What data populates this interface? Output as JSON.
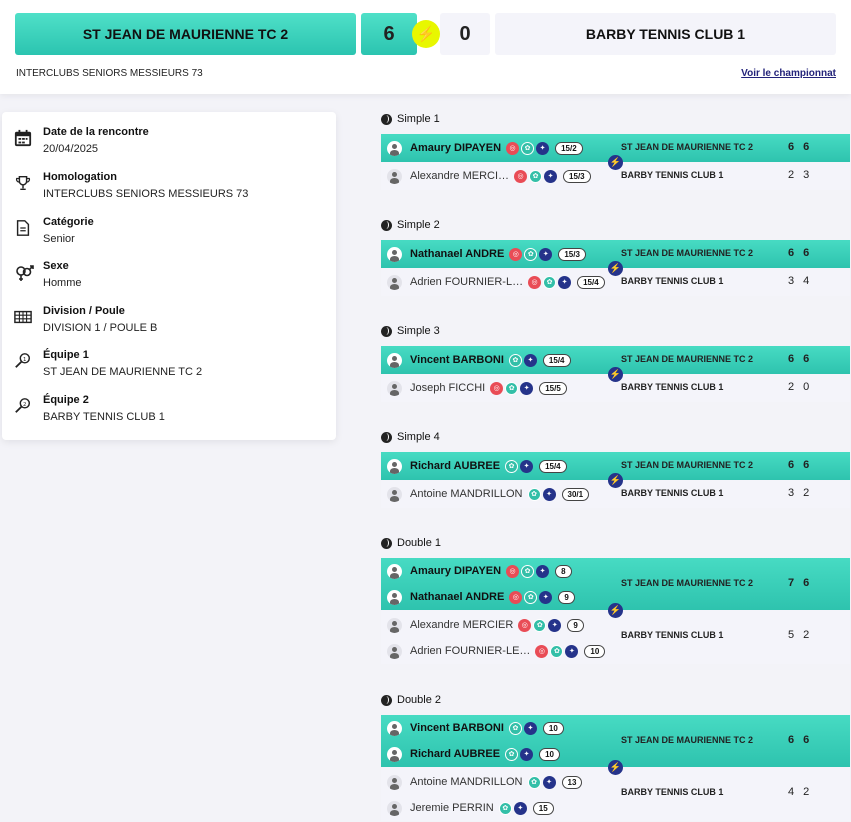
{
  "header": {
    "team1": "ST JEAN DE MAURIENNE TC 2",
    "score1": "6",
    "score2": "0",
    "team2": "BARBY TENNIS CLUB 1",
    "competition": "INTERCLUBS SENIORS MESSIEURS 73",
    "championship_link": "Voir le championnat"
  },
  "info": [
    {
      "label": "Date de la rencontre",
      "value": "20/04/2025",
      "icon": "calendar-icon"
    },
    {
      "label": "Homologation",
      "value": "INTERCLUBS SENIORS MESSIEURS 73",
      "icon": "trophy-icon"
    },
    {
      "label": "Catégorie",
      "value": "Senior",
      "icon": "document-icon"
    },
    {
      "label": "Sexe",
      "value": "Homme",
      "icon": "gender-icon"
    },
    {
      "label": "Division / Poule",
      "value": "DIVISION 1 / POULE B",
      "icon": "grid-icon"
    },
    {
      "label": "Équipe 1",
      "value": "ST JEAN DE MAURIENNE TC 2",
      "icon": "racket-1-icon"
    },
    {
      "label": "Équipe 2",
      "value": "BARBY TENNIS CLUB 1",
      "icon": "racket-2-icon"
    }
  ],
  "matches": [
    {
      "title": "Simple 1",
      "winner": {
        "players": [
          {
            "name": "Amaury DIPAYEN",
            "badges": [
              "red",
              "green",
              "blue"
            ],
            "rank": "15/2"
          }
        ],
        "team": "ST JEAN DE MAURIENNE TC 2",
        "scores": [
          "6",
          "6"
        ]
      },
      "loser": {
        "players": [
          {
            "name": "Alexandre MERCI…",
            "badges": [
              "red",
              "green",
              "blue"
            ],
            "rank": "15/3"
          }
        ],
        "team": "BARBY TENNIS CLUB 1",
        "scores": [
          "2",
          "3"
        ]
      }
    },
    {
      "title": "Simple 2",
      "winner": {
        "players": [
          {
            "name": "Nathanael ANDRE",
            "badges": [
              "red",
              "green",
              "blue"
            ],
            "rank": "15/3"
          }
        ],
        "team": "ST JEAN DE MAURIENNE TC 2",
        "scores": [
          "6",
          "6"
        ]
      },
      "loser": {
        "players": [
          {
            "name": "Adrien FOURNIER-L…",
            "badges": [
              "red",
              "green",
              "blue"
            ],
            "rank": "15/4"
          }
        ],
        "team": "BARBY TENNIS CLUB 1",
        "scores": [
          "3",
          "4"
        ]
      }
    },
    {
      "title": "Simple 3",
      "winner": {
        "players": [
          {
            "name": "Vincent BARBONI",
            "badges": [
              "green",
              "blue"
            ],
            "rank": "15/4"
          }
        ],
        "team": "ST JEAN DE MAURIENNE TC 2",
        "scores": [
          "6",
          "6"
        ]
      },
      "loser": {
        "players": [
          {
            "name": "Joseph FICCHI",
            "badges": [
              "red",
              "green",
              "blue"
            ],
            "rank": "15/5"
          }
        ],
        "team": "BARBY TENNIS CLUB 1",
        "scores": [
          "2",
          "0"
        ]
      }
    },
    {
      "title": "Simple 4",
      "winner": {
        "players": [
          {
            "name": "Richard AUBREE",
            "badges": [
              "green",
              "blue"
            ],
            "rank": "15/4"
          }
        ],
        "team": "ST JEAN DE MAURIENNE TC 2",
        "scores": [
          "6",
          "6"
        ]
      },
      "loser": {
        "players": [
          {
            "name": "Antoine MANDRILLON",
            "badges": [
              "green",
              "blue"
            ],
            "rank": "30/1"
          }
        ],
        "team": "BARBY TENNIS CLUB 1",
        "scores": [
          "3",
          "2"
        ]
      }
    },
    {
      "title": "Double 1",
      "winner": {
        "players": [
          {
            "name": "Amaury DIPAYEN",
            "badges": [
              "red",
              "green",
              "blue"
            ],
            "rank": "8"
          },
          {
            "name": "Nathanael ANDRE",
            "badges": [
              "red",
              "green",
              "blue"
            ],
            "rank": "9"
          }
        ],
        "team": "ST JEAN DE MAURIENNE TC 2",
        "scores": [
          "7",
          "6"
        ]
      },
      "loser": {
        "players": [
          {
            "name": "Alexandre MERCIER",
            "badges": [
              "red",
              "green",
              "blue"
            ],
            "rank": "9"
          },
          {
            "name": "Adrien FOURNIER-LE…",
            "badges": [
              "red",
              "green",
              "blue"
            ],
            "rank": "10"
          }
        ],
        "team": "BARBY TENNIS CLUB 1",
        "scores": [
          "5",
          "2"
        ]
      }
    },
    {
      "title": "Double 2",
      "winner": {
        "players": [
          {
            "name": "Vincent BARBONI",
            "badges": [
              "green",
              "blue"
            ],
            "rank": "10"
          },
          {
            "name": "Richard AUBREE",
            "badges": [
              "green",
              "blue"
            ],
            "rank": "10"
          }
        ],
        "team": "ST JEAN DE MAURIENNE TC 2",
        "scores": [
          "6",
          "6"
        ]
      },
      "loser": {
        "players": [
          {
            "name": "Antoine MANDRILLON",
            "badges": [
              "green",
              "blue"
            ],
            "rank": "13"
          },
          {
            "name": "Jeremie PERRIN",
            "badges": [
              "green",
              "blue"
            ],
            "rank": "15"
          }
        ],
        "team": "BARBY TENNIS CLUB 1",
        "scores": [
          "4",
          "2"
        ]
      }
    }
  ]
}
